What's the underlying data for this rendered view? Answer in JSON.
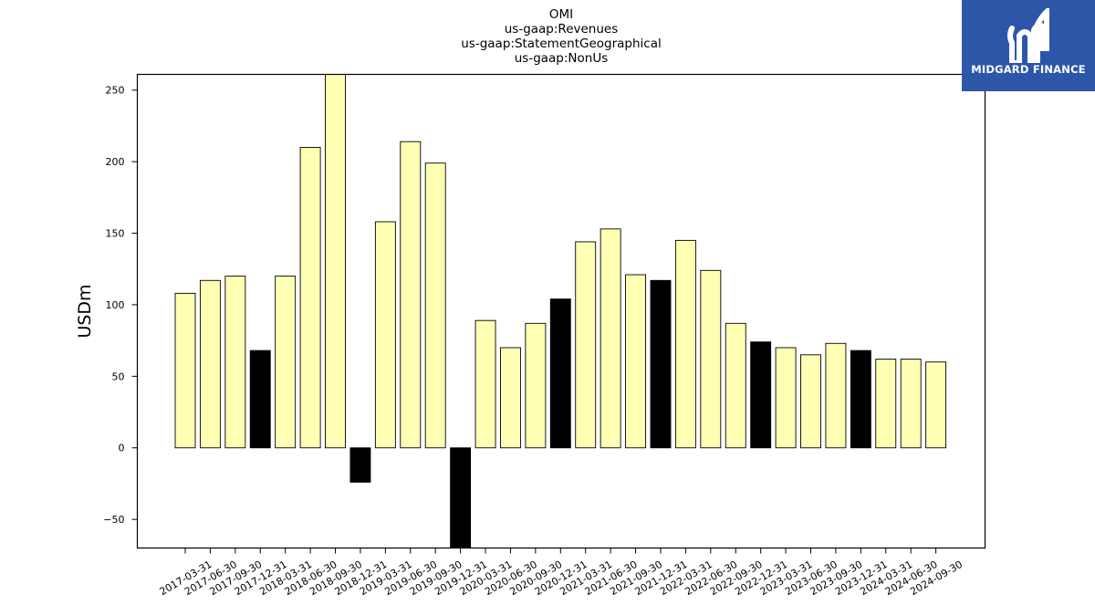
{
  "logo": {
    "text": "MIDGARD FINANCE",
    "icon": "midgard-m-logo-icon",
    "background": "#2e56a8"
  },
  "chart_data": {
    "type": "bar",
    "title_lines": [
      "OMI",
      "us-gaap:Revenues",
      "us-gaap:StatementGeographical",
      "us-gaap:NonUs"
    ],
    "xlabel": "",
    "ylabel": "USDm",
    "ylim": [
      -70,
      261
    ],
    "yticks": [
      -50,
      0,
      50,
      100,
      150,
      200,
      250
    ],
    "grid": false,
    "colors": {
      "default": "#ffffb3",
      "q4": "#000000",
      "edge": "#000000"
    },
    "categories": [
      "2017-03-31",
      "2017-06-30",
      "2017-09-30",
      "2017-12-31",
      "2018-03-31",
      "2018-06-30",
      "2018-09-30",
      "2018-12-31",
      "2019-03-31",
      "2019-06-30",
      "2019-09-30",
      "2019-12-31",
      "2020-03-31",
      "2020-06-30",
      "2020-09-30",
      "2020-12-31",
      "2021-03-31",
      "2021-06-30",
      "2021-09-30",
      "2021-12-31",
      "2022-03-31",
      "2022-06-30",
      "2022-09-30",
      "2022-12-31",
      "2023-03-31",
      "2023-06-30",
      "2023-09-30",
      "2023-12-31",
      "2024-03-31",
      "2024-06-30",
      "2024-09-30"
    ],
    "values": [
      108,
      117,
      120,
      68,
      120,
      210,
      262,
      -24,
      158,
      214,
      199,
      -78,
      89,
      70,
      87,
      104,
      144,
      153,
      121,
      117,
      145,
      124,
      87,
      74,
      70,
      65,
      73,
      68,
      62,
      62,
      60
    ]
  }
}
